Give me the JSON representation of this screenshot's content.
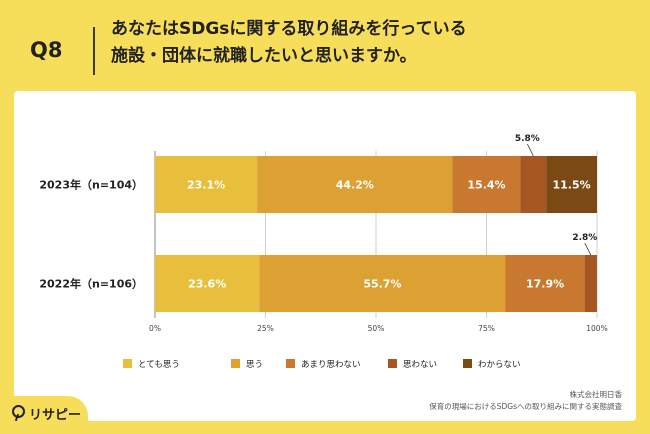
{
  "question": {
    "number": "Q8",
    "line1": "あなたはSDGsに関する取り組みを行っている",
    "line2": "施設・団体に就職したいと思いますか。"
  },
  "source": {
    "line1": "株式会社明日香",
    "line2": "保育の現場におけるSDGsへの取り組みに関する実態調査"
  },
  "brand": {
    "name": "リサピー"
  },
  "chart_data": {
    "type": "bar",
    "orientation": "horizontal-stacked-100",
    "categories": [
      "2023年（n=104）",
      "2022年（n=106）"
    ],
    "series": [
      {
        "name": "とても思う",
        "color": "#e8bf3c",
        "values": [
          23.1,
          23.6
        ],
        "labels": [
          "23.1%",
          "23.6%"
        ]
      },
      {
        "name": "思う",
        "color": "#dda033",
        "values": [
          44.2,
          55.7
        ],
        "labels": [
          "44.2%",
          "55.7%"
        ]
      },
      {
        "name": "あまり思わない",
        "color": "#c9782f",
        "values": [
          15.4,
          17.9
        ],
        "labels": [
          "15.4%",
          "17.9%"
        ]
      },
      {
        "name": "思わない",
        "color": "#a65620",
        "values": [
          5.8,
          2.8
        ],
        "labels": [
          "5.8%",
          "2.8%"
        ]
      },
      {
        "name": "わからない",
        "color": "#7b4a14",
        "values": [
          11.5,
          0
        ],
        "labels": [
          "11.5%",
          ""
        ]
      }
    ],
    "xlim": [
      0,
      100
    ],
    "xticks": [
      "0%",
      "25%",
      "50%",
      "75%",
      "100%"
    ],
    "grid": true,
    "legend": "bottom"
  }
}
